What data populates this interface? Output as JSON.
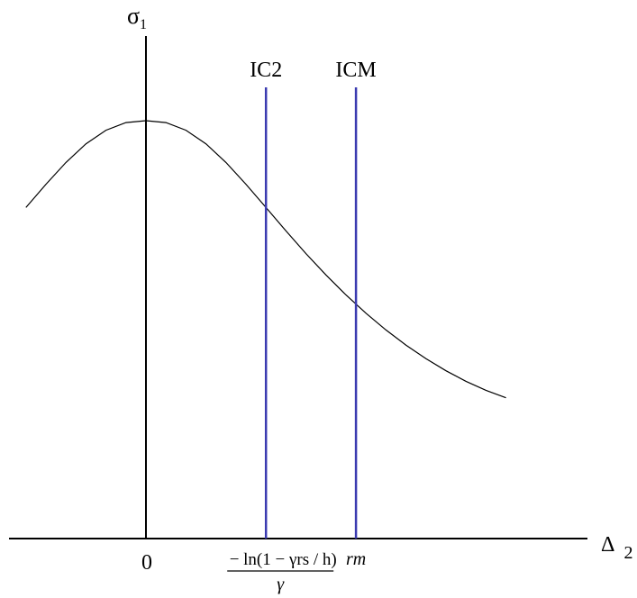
{
  "chart_data": {
    "type": "line",
    "y_axis_label": "σ",
    "y_axis_label_sub": "1",
    "x_axis_label": "Δ",
    "x_axis_label_sub": "2",
    "x_tick_zero": "0",
    "curve": {
      "x": [
        -1.2,
        -1.0,
        -0.8,
        -0.6,
        -0.4,
        -0.2,
        0.0,
        0.2,
        0.4,
        0.6,
        0.8,
        1.0,
        1.2,
        1.4,
        1.6,
        1.8,
        2.0,
        2.2,
        2.4,
        2.6,
        2.8,
        3.0,
        3.2,
        3.4,
        3.6
      ],
      "y": [
        0.6997,
        0.7802,
        0.8556,
        0.9199,
        0.967,
        0.9934,
        1.0,
        0.9934,
        0.967,
        0.9199,
        0.8556,
        0.7802,
        0.6997,
        0.6188,
        0.5403,
        0.4662,
        0.3973,
        0.3339,
        0.276,
        0.2236,
        0.1766,
        0.1349,
        0.0985,
        0.0674,
        0.0414
      ]
    },
    "vertical_lines": [
      {
        "name": "IC2",
        "x": 1.2,
        "tick_label_numerator": "− ln(1 − γrs / h)",
        "tick_label_denominator": "γ",
        "color": "#3b3bb0"
      },
      {
        "name": "ICM",
        "x": 2.1,
        "tick_label": "rm",
        "color": "#3b3bb0"
      }
    ],
    "xlim": [
      -1.4,
      4.3
    ],
    "ylim": [
      -0.9,
      1.4
    ]
  }
}
